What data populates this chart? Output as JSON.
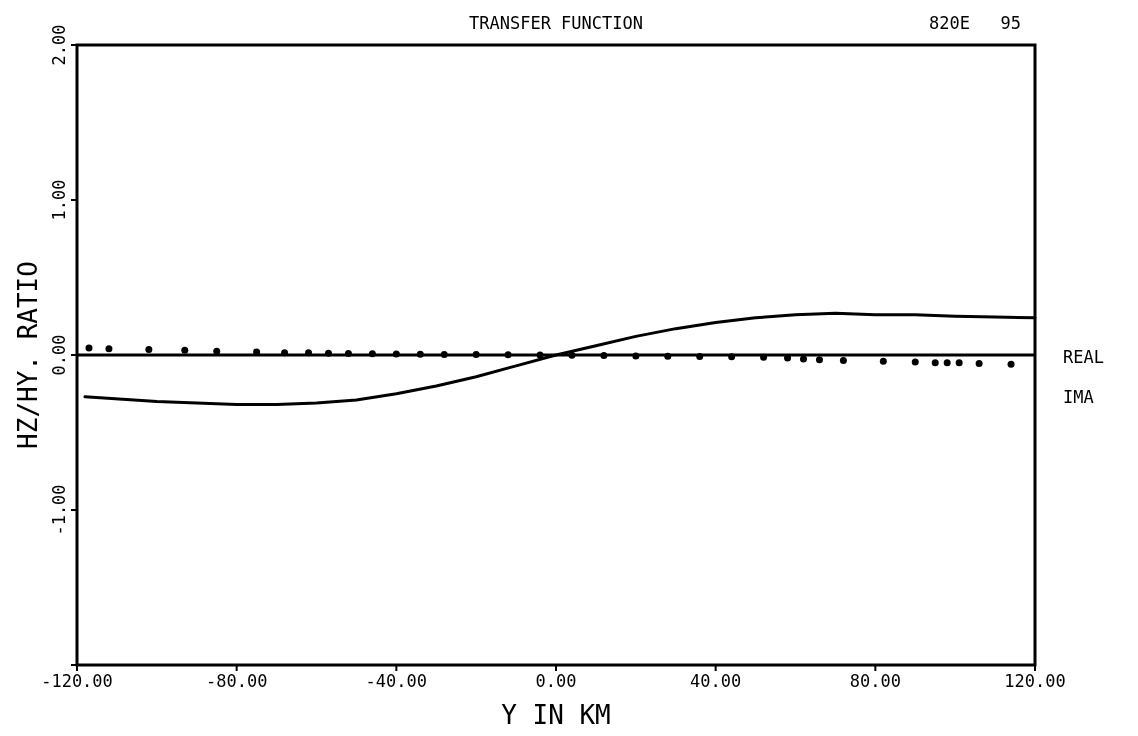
{
  "chart_data": {
    "type": "line",
    "title": "TRANSFER FUNCTION",
    "annotations": [
      "820E   95"
    ],
    "xlabel": "Y IN KM",
    "ylabel": "HZ/HY. RATIO",
    "xlim": [
      -120,
      120
    ],
    "ylim": [
      -2,
      2
    ],
    "xticks": [
      {
        "value": -120,
        "label": "-120.00"
      },
      {
        "value": -80,
        "label": "-80.00"
      },
      {
        "value": -40,
        "label": "-40.00"
      },
      {
        "value": 0,
        "label": "0.00"
      },
      {
        "value": 40,
        "label": "40.00"
      },
      {
        "value": 80,
        "label": "80.00"
      },
      {
        "value": 120,
        "label": "120.00"
      }
    ],
    "yticks": [
      {
        "value": -2,
        "label": null
      },
      {
        "value": -1,
        "label": "-1.00"
      },
      {
        "value": 0,
        "label": "0.00"
      },
      {
        "value": 1,
        "label": "1.00"
      },
      {
        "value": 2,
        "label": "2.00"
      }
    ],
    "ref_lines": [
      {
        "axis": "y",
        "value": 0,
        "color": "#000000"
      }
    ],
    "legend": "right",
    "grid": false,
    "series": [
      {
        "name": "REAL",
        "type": "line",
        "color": "#000000",
        "line_style": "solid",
        "marker": "none",
        "x": [
          -118,
          -100,
          -80,
          -70,
          -60,
          -50,
          -40,
          -30,
          -20,
          -10,
          0,
          10,
          20,
          30,
          40,
          50,
          60,
          70,
          80,
          90,
          100,
          110,
          120
        ],
        "values": [
          -0.27,
          -0.3,
          -0.32,
          -0.32,
          -0.31,
          -0.29,
          -0.25,
          -0.2,
          -0.14,
          -0.07,
          0.0,
          0.06,
          0.12,
          0.17,
          0.21,
          0.24,
          0.26,
          0.27,
          0.26,
          0.26,
          0.25,
          0.245,
          0.24
        ]
      },
      {
        "name": "IMA",
        "type": "scatter",
        "color": "#000000",
        "marker": "circle",
        "x": [
          -117,
          -112,
          -102,
          -93,
          -85,
          -75,
          -68,
          -62,
          -57,
          -52,
          -46,
          -40,
          -34,
          -28,
          -20,
          -12,
          -4,
          4,
          12,
          20,
          28,
          36,
          44,
          52,
          58,
          62,
          66,
          72,
          82,
          90,
          95,
          98,
          101,
          106,
          114
        ],
        "values": [
          0.045,
          0.04,
          0.035,
          0.03,
          0.025,
          0.02,
          0.015,
          0.015,
          0.012,
          0.01,
          0.008,
          0.006,
          0.005,
          0.004,
          0.003,
          0.002,
          0.0,
          -0.002,
          -0.004,
          -0.006,
          -0.008,
          -0.01,
          -0.012,
          -0.015,
          -0.02,
          -0.025,
          -0.03,
          -0.035,
          -0.04,
          -0.045,
          -0.05,
          -0.05,
          -0.05,
          -0.055,
          -0.06
        ]
      }
    ]
  }
}
